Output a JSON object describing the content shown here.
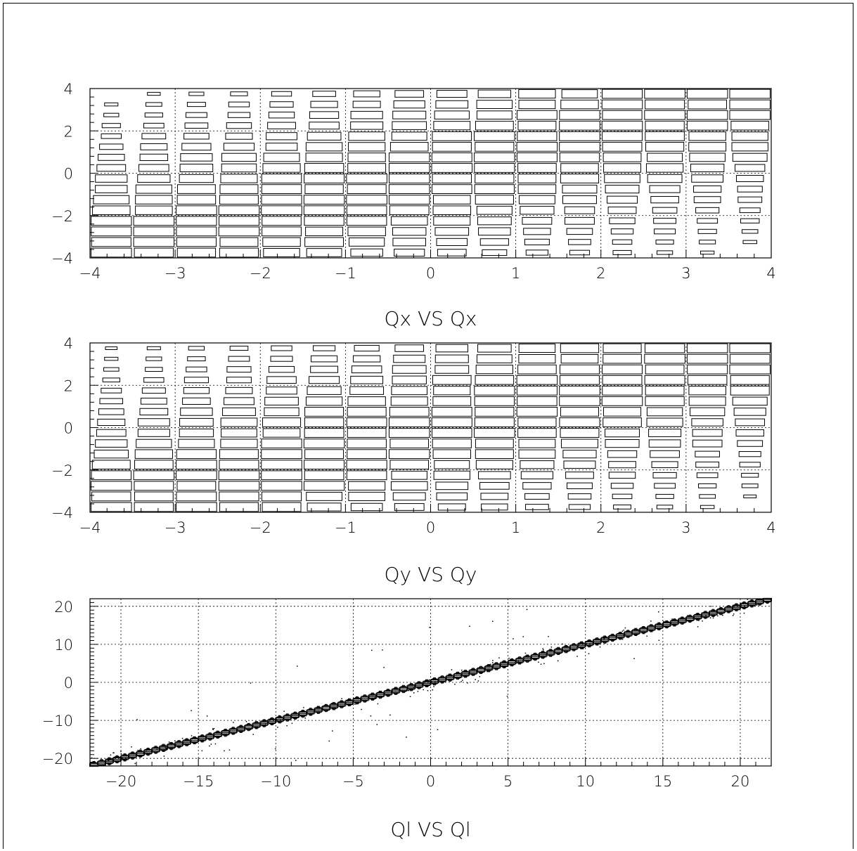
{
  "figure": {
    "background": "#ffffff",
    "line_color": "#000000"
  },
  "chart_data": [
    {
      "type": "heatmap",
      "title": "Qx VS Qx",
      "xlabel": "",
      "ylabel": "",
      "xlim": [
        -4,
        4
      ],
      "ylim": [
        -4,
        4
      ],
      "x_ticks": [
        -4,
        -3,
        -2,
        -1,
        0,
        1,
        2,
        3,
        4
      ],
      "y_ticks": [
        -4,
        -2,
        0,
        2,
        4
      ],
      "grid": true,
      "bins": [
        16,
        16
      ],
      "correlation": "positive, broad",
      "cell_style": "box-size proportional to bin content"
    },
    {
      "type": "heatmap",
      "title": "Qy VS Qy",
      "xlabel": "",
      "ylabel": "",
      "xlim": [
        -4,
        4
      ],
      "ylim": [
        -4,
        4
      ],
      "x_ticks": [
        -4,
        -3,
        -2,
        -1,
        0,
        1,
        2,
        3,
        4
      ],
      "y_ticks": [
        -4,
        -2,
        0,
        2,
        4
      ],
      "grid": true,
      "bins": [
        16,
        16
      ],
      "correlation": "positive, broad",
      "cell_style": "box-size proportional to bin content"
    },
    {
      "type": "heatmap",
      "title": "Ql VS Ql",
      "xlabel": "",
      "ylabel": "",
      "xlim": [
        -22,
        22
      ],
      "ylim": [
        -22,
        22
      ],
      "x_ticks": [
        -20,
        -15,
        -10,
        -5,
        0,
        5,
        10,
        15,
        20
      ],
      "y_ticks": [
        -20,
        -10,
        0,
        10,
        20
      ],
      "grid": true,
      "correlation": "tight diagonal y = x",
      "cell_style": "box-size proportional to bin content"
    }
  ]
}
